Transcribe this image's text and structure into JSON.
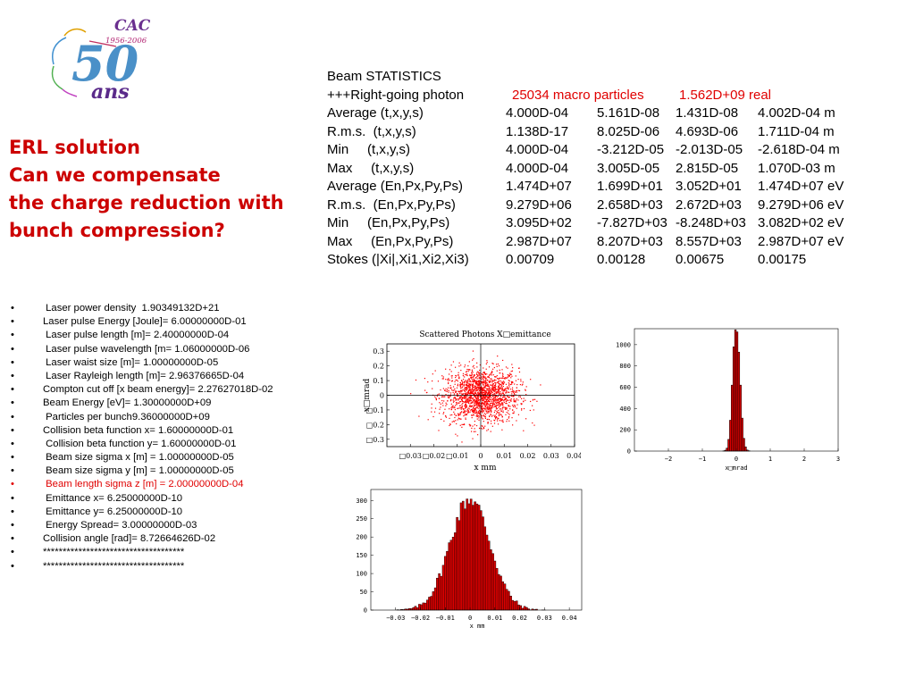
{
  "logo": {
    "text_top": "CAC",
    "years": "1956-2006",
    "number": "50",
    "script": "ans"
  },
  "heading": [
    "ERL solution",
    "Can we compensate",
    "the charge reduction with",
    "bunch compression?"
  ],
  "stats": {
    "title": "Beam STATISTICS",
    "photon": {
      "label": "+++Right-going photon",
      "macro": "25034 macro particles",
      "real": "1.562D+09 real"
    },
    "rows": [
      {
        "label": "Average (t,x,y,s)",
        "values": [
          "4.000D-04",
          "5.161D-08",
          "1.431D-08",
          "4.002D-04 m"
        ]
      },
      {
        "label": "R.m.s.  (t,x,y,s)",
        "values": [
          "1.138D-17",
          "8.025D-06",
          "4.693D-06",
          "1.711D-04 m"
        ]
      },
      {
        "label": "Min     (t,x,y,s)",
        "values": [
          "4.000D-04",
          "-3.212D-05",
          "-2.013D-05",
          "-2.618D-04 m"
        ]
      },
      {
        "label": "Max     (t,x,y,s)",
        "values": [
          "4.000D-04",
          "3.005D-05",
          "2.815D-05",
          "1.070D-03 m"
        ]
      },
      {
        "label": "Average (En,Px,Py,Ps)",
        "values": [
          "1.474D+07",
          "1.699D+01",
          "3.052D+01",
          "1.474D+07 eV"
        ]
      },
      {
        "label": "R.m.s.  (En,Px,Py,Ps)",
        "values": [
          "9.279D+06",
          "2.658D+03",
          "2.672D+03",
          "9.279D+06 eV"
        ]
      },
      {
        "label": "Min     (En,Px,Py,Ps)",
        "values": [
          "3.095D+02",
          "-7.827D+03",
          "-8.248D+03",
          "3.082D+02 eV"
        ]
      },
      {
        "label": "Max     (En,Px,Py,Ps)",
        "values": [
          "2.987D+07",
          "8.207D+03",
          "8.557D+03",
          "2.987D+07 eV"
        ]
      },
      {
        "label": "Stokes (|Xi|,Xi1,Xi2,Xi3)",
        "values": [
          "0.00709",
          "0.00128",
          "0.00675",
          "0.00175"
        ]
      }
    ]
  },
  "params": [
    {
      "text": " Laser power density  1.90349132D+21",
      "highlight": false
    },
    {
      "text": "Laser pulse Energy [Joule]= 6.00000000D-01",
      "highlight": false
    },
    {
      "text": " Laser pulse length [m]= 2.40000000D-04",
      "highlight": false
    },
    {
      "text": " Laser pulse wavelength [m= 1.06000000D-06",
      "highlight": false
    },
    {
      "text": " Laser waist size [m]= 1.00000000D-05",
      "highlight": false
    },
    {
      "text": " Laser Rayleigh length [m]= 2.96376665D-04",
      "highlight": false
    },
    {
      "text": "Compton cut off [x beam energy]= 2.27627018D-02",
      "highlight": false
    },
    {
      "text": "Beam Energy [eV]= 1.30000000D+09",
      "highlight": false
    },
    {
      "text": " Particles per bunch9.36000000D+09",
      "highlight": false
    },
    {
      "text": "Collision beta function x= 1.60000000D-01",
      "highlight": false
    },
    {
      "text": " Collision beta function y= 1.60000000D-01",
      "highlight": false
    },
    {
      "text": " Beam size sigma x [m] = 1.00000000D-05",
      "highlight": false
    },
    {
      "text": " Beam size sigma y [m] = 1.00000000D-05",
      "highlight": false
    },
    {
      "text": " Beam length sigma z [m] = 2.00000000D-04",
      "highlight": true
    },
    {
      "text": " Emittance x= 6.25000000D-10",
      "highlight": false
    },
    {
      "text": " Emittance y= 6.25000000D-10",
      "highlight": false
    },
    {
      "text": " Energy Spread= 3.00000000D-03",
      "highlight": false
    },
    {
      "text": "Collision angle [rad]= 8.72664626D-02",
      "highlight": false
    },
    {
      "text": "************************************",
      "highlight": false
    },
    {
      "text": "************************************",
      "highlight": false
    }
  ],
  "bullet": "•",
  "colors": {
    "heading": "#cc0000",
    "highlight": "#e00000",
    "bars": "#dd0000",
    "points": "#ff0000"
  },
  "chart_data": [
    {
      "type": "scatter",
      "title": "Scattered Photons X□emittance",
      "xlabel": "x mm",
      "ylabel": "x□mrad",
      "xlim": [
        -0.04,
        0.04
      ],
      "ylim": [
        -0.35,
        0.35
      ],
      "xticks": [
        -0.03,
        -0.02,
        -0.01,
        0,
        0.01,
        0.02,
        0.03,
        0.04
      ],
      "xtick_labels": [
        "□0.03",
        "□0.02",
        "□0.01",
        "0",
        "0.01",
        "0.02",
        "0.03",
        "0.04"
      ],
      "yticks": [
        0.3,
        0.2,
        0.1,
        0,
        -0.1,
        -0.2,
        -0.3
      ],
      "ytick_labels": [
        "0.3",
        "0.2",
        "0.1",
        "0",
        "□0.1",
        "□0.2",
        "□0.3"
      ],
      "distribution": {
        "x_mean": 0.0,
        "x_sigma": 0.008,
        "y_mean": 0.0,
        "y_sigma": 0.093
      },
      "point_color": "#ff0000"
    },
    {
      "type": "bar",
      "xlabel": "x□mrad",
      "xlim": [
        -3,
        3
      ],
      "xticks": [
        -2,
        -1,
        0,
        1,
        2,
        3
      ],
      "xtick_labels": [
        "−2",
        "−1",
        "0",
        "1",
        "2",
        "3"
      ],
      "ylim": [
        0,
        1150
      ],
      "yticks": [
        0,
        200,
        400,
        600,
        800,
        1000
      ],
      "bin_width": 0.05,
      "bins": [
        -0.4,
        -0.35,
        -0.3,
        -0.25,
        -0.2,
        -0.15,
        -0.1,
        -0.05,
        0,
        0.05,
        0.1,
        0.15,
        0.2,
        0.25,
        0.3,
        0.35
      ],
      "values": [
        2,
        8,
        28,
        110,
        290,
        620,
        980,
        1140,
        1120,
        930,
        620,
        310,
        120,
        40,
        10,
        3
      ]
    },
    {
      "type": "bar",
      "xlabel": "x mm",
      "xlim": [
        -0.04,
        0.045
      ],
      "xticks": [
        -0.03,
        -0.02,
        -0.01,
        0,
        0.01,
        0.02,
        0.03,
        0.04
      ],
      "xtick_labels": [
        "−0.03",
        "−0.02",
        "−0.01",
        "0",
        "0.01",
        "0.02",
        "0.03",
        "0.04"
      ],
      "ylim": [
        0,
        330
      ],
      "yticks": [
        0,
        50,
        100,
        150,
        200,
        250,
        300
      ],
      "histogram": {
        "mean": 0.0,
        "sigma": 0.008,
        "peak": 305,
        "bin_width": 0.0008,
        "range": [
          -0.032,
          0.03
        ]
      }
    }
  ]
}
